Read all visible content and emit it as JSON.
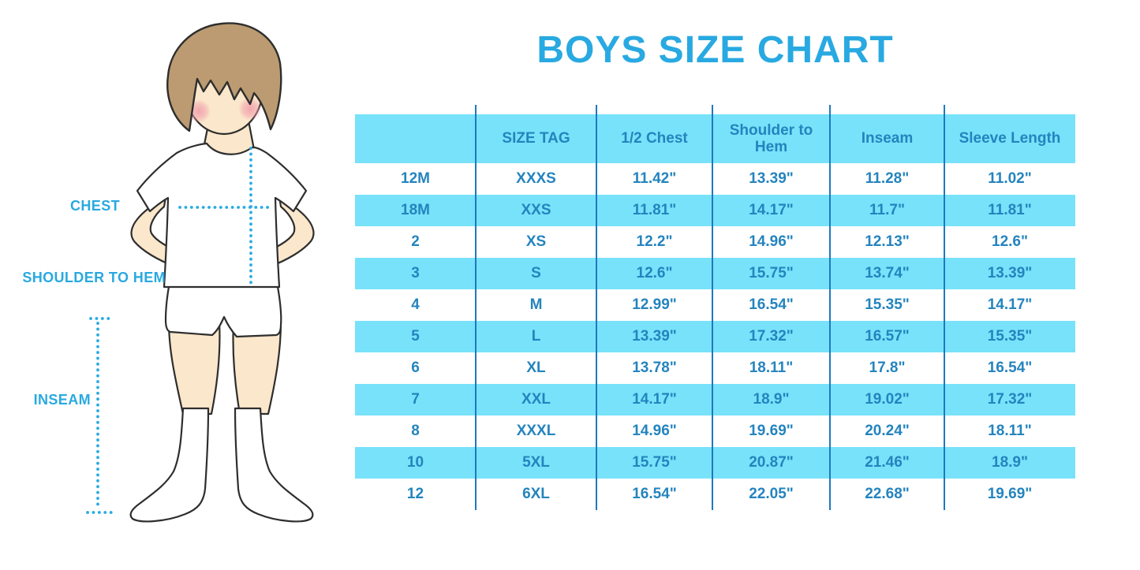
{
  "title": "BOYS SIZE CHART",
  "colors": {
    "title_blue": "#29A9E1",
    "band_blue": "#78E2FA",
    "line_blue": "#1E79BE",
    "text_blue": "#2484BE",
    "label_blue": "#29A9E1",
    "dot_blue": "#29ABE2",
    "skin": "#FBE7CB",
    "hair": "#BC9B72",
    "outline": "#2E2E2E"
  },
  "figure": {
    "labels": {
      "chest": "CHEST",
      "shoulder_to_hem": "SHOULDER TO HEM",
      "inseam": "INSEAM"
    }
  },
  "chart_data": {
    "type": "table",
    "title": "BOYS SIZE CHART",
    "columns": [
      "",
      "SIZE TAG",
      "1/2 Chest",
      "Shoulder to Hem",
      "Inseam",
      "Sleeve Length"
    ],
    "rows": [
      [
        "12M",
        "XXXS",
        "11.42\"",
        "13.39\"",
        "11.28\"",
        "11.02\""
      ],
      [
        "18M",
        "XXS",
        "11.81\"",
        "14.17\"",
        "11.7\"",
        "11.81\""
      ],
      [
        "2",
        "XS",
        "12.2\"",
        "14.96\"",
        "12.13\"",
        "12.6\""
      ],
      [
        "3",
        "S",
        "12.6\"",
        "15.75\"",
        "13.74\"",
        "13.39\""
      ],
      [
        "4",
        "M",
        "12.99\"",
        "16.54\"",
        "15.35\"",
        "14.17\""
      ],
      [
        "5",
        "L",
        "13.39\"",
        "17.32\"",
        "16.57\"",
        "15.35\""
      ],
      [
        "6",
        "XL",
        "13.78\"",
        "18.11\"",
        "17.8\"",
        "16.54\""
      ],
      [
        "7",
        "XXL",
        "14.17\"",
        "18.9\"",
        "19.02\"",
        "17.32\""
      ],
      [
        "8",
        "XXXL",
        "14.96\"",
        "19.69\"",
        "20.24\"",
        "18.11\""
      ],
      [
        "10",
        "5XL",
        "15.75\"",
        "20.87\"",
        "21.46\"",
        "18.9\""
      ],
      [
        "12",
        "6XL",
        "16.54\"",
        "22.05\"",
        "22.68\"",
        "19.69\""
      ]
    ],
    "layout": {
      "header_band": true,
      "alternating_rows": [
        "white",
        "light-blue"
      ],
      "grid": "vertical-lines-only"
    }
  }
}
